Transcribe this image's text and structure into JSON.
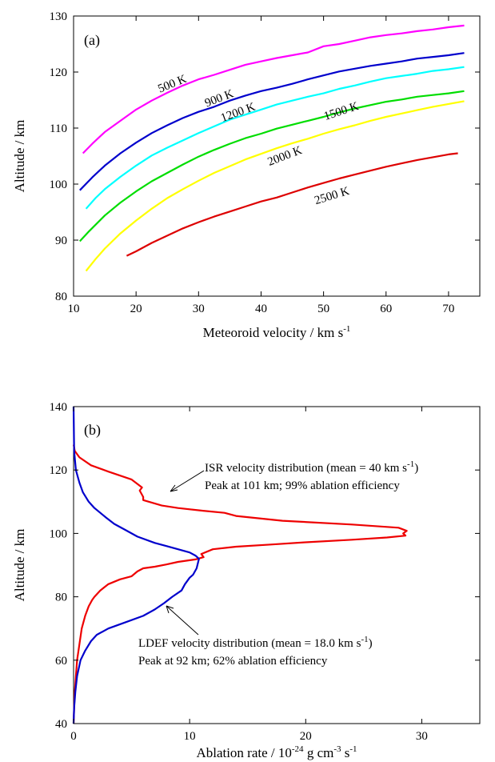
{
  "chart_data": [
    {
      "type": "line",
      "panel_label": "(a)",
      "xlabel": {
        "main": "Meteoroid velocity / km s",
        "sup": "-1"
      },
      "ylabel": "Altitude / km",
      "xlim": [
        10,
        75
      ],
      "ylim": [
        80,
        130
      ],
      "x_ticks": [
        "10",
        "20",
        "30",
        "40",
        "50",
        "60",
        "70"
      ],
      "y_ticks": [
        "80",
        "90",
        "100",
        "110",
        "120",
        "130"
      ],
      "grid": false,
      "series": [
        {
          "name": "500 K",
          "color": "#ff00ff",
          "x": [
            11.5,
            13,
            15,
            17.5,
            20,
            22.5,
            25,
            27.5,
            30,
            32.5,
            35,
            37.5,
            40,
            42.5,
            45,
            47.5,
            50,
            52.5,
            55,
            57.5,
            60,
            62.5,
            65,
            67.5,
            70,
            72.5
          ],
          "y": [
            105.5,
            107.2,
            109.3,
            111.3,
            113.3,
            114.9,
            116.3,
            117.6,
            118.7,
            119.5,
            120.4,
            121.3,
            121.9,
            122.5,
            123.0,
            123.5,
            124.6,
            125.0,
            125.6,
            126.2,
            126.6,
            126.9,
            127.3,
            127.6,
            128.0,
            128.3
          ]
        },
        {
          "name": "900 K",
          "color": "#0000cc",
          "x": [
            11,
            13,
            15,
            17.5,
            20,
            22.5,
            25,
            27.5,
            30,
            32.5,
            35,
            37.5,
            40,
            42.5,
            45,
            47.5,
            50,
            52.5,
            55,
            57.5,
            60,
            62.5,
            65,
            67.5,
            70,
            72.5
          ],
          "y": [
            98.9,
            101.2,
            103.3,
            105.5,
            107.4,
            109.1,
            110.5,
            111.8,
            112.9,
            113.8,
            114.9,
            115.8,
            116.6,
            117.2,
            117.9,
            118.7,
            119.4,
            120.1,
            120.6,
            121.1,
            121.5,
            121.9,
            122.4,
            122.7,
            123.0,
            123.4
          ]
        },
        {
          "name": "1200 K",
          "color": "#00ffff",
          "x": [
            12,
            13.5,
            15,
            17.5,
            20,
            22.5,
            25,
            27.5,
            30,
            32.5,
            35,
            37.5,
            40,
            42.5,
            45,
            47.5,
            50,
            52.5,
            55,
            57.5,
            60,
            62.5,
            65,
            67.5,
            70,
            72.5
          ],
          "y": [
            95.6,
            97.5,
            99.1,
            101.3,
            103.3,
            105.1,
            106.5,
            107.8,
            109.1,
            110.3,
            111.5,
            112.4,
            113.3,
            114.2,
            114.9,
            115.6,
            116.2,
            117.0,
            117.6,
            118.3,
            118.9,
            119.3,
            119.7,
            120.2,
            120.5,
            120.9
          ]
        },
        {
          "name": "1500 K",
          "color": "#00dd00",
          "x": [
            11,
            12.5,
            15,
            17.5,
            20,
            22.5,
            25,
            27.5,
            30,
            32.5,
            35,
            37.5,
            40,
            42.5,
            45,
            47.5,
            50,
            52.5,
            55,
            57.5,
            60,
            62.5,
            65,
            67.5,
            70,
            72.5
          ],
          "y": [
            89.8,
            91.6,
            94.4,
            96.7,
            98.7,
            100.5,
            102.0,
            103.5,
            104.9,
            106.1,
            107.2,
            108.2,
            109.0,
            109.9,
            110.6,
            111.3,
            112.0,
            112.8,
            113.5,
            114.1,
            114.7,
            115.1,
            115.6,
            115.9,
            116.2,
            116.6
          ]
        },
        {
          "name": "2000 K",
          "color": "#ffff00",
          "x": [
            12,
            13.5,
            15,
            17.5,
            20,
            22.5,
            25,
            27.5,
            30,
            32.5,
            35,
            37.5,
            40,
            42.5,
            45,
            47.5,
            50,
            52.5,
            55,
            57.5,
            60,
            62.5,
            65,
            67.5,
            70,
            72.5
          ],
          "y": [
            84.5,
            86.6,
            88.5,
            91.2,
            93.5,
            95.6,
            97.5,
            99.1,
            100.6,
            102.0,
            103.2,
            104.4,
            105.4,
            106.4,
            107.3,
            108.1,
            109.0,
            109.8,
            110.5,
            111.3,
            112.0,
            112.6,
            113.2,
            113.8,
            114.3,
            114.8
          ]
        },
        {
          "name": "2500 K",
          "color": "#dd0000",
          "x": [
            18.5,
            20,
            22.5,
            25,
            27.5,
            30,
            32.5,
            35,
            37.5,
            40,
            42.5,
            45,
            47.5,
            50,
            52.5,
            55,
            57.5,
            60,
            62.5,
            65,
            67.5,
            70,
            71.5
          ],
          "y": [
            87.2,
            88.0,
            89.5,
            90.8,
            92.1,
            93.2,
            94.2,
            95.1,
            96.0,
            96.9,
            97.6,
            98.5,
            99.4,
            100.2,
            101.0,
            101.7,
            102.4,
            103.1,
            103.7,
            104.3,
            104.8,
            105.3,
            105.5
          ]
        }
      ],
      "curve_labels": [
        {
          "text": "500 K",
          "x": 26,
          "y": 117.3,
          "angle": -22
        },
        {
          "text": "900 K",
          "x": 33.5,
          "y": 114.7,
          "angle": -21
        },
        {
          "text": "1200 K",
          "x": 36.5,
          "y": 112.2,
          "angle": -20
        },
        {
          "text": "1500 K",
          "x": 53,
          "y": 112.4,
          "angle": -18
        },
        {
          "text": "2000 K",
          "x": 44,
          "y": 104.4,
          "angle": -21
        },
        {
          "text": "2500 K",
          "x": 51.5,
          "y": 97.3,
          "angle": -17
        }
      ]
    },
    {
      "type": "line",
      "panel_label": "(b)",
      "xlabel": {
        "main": "Ablation rate / 10",
        "sup1": "-24",
        "mid": " g cm",
        "sup2": "-3",
        "mid2": " s",
        "sup3": "-1"
      },
      "ylabel": "Altitude / km",
      "xlim": [
        0,
        35
      ],
      "ylim": [
        40,
        140
      ],
      "x_ticks": [
        "0",
        "10",
        "20",
        "30"
      ],
      "y_ticks": [
        "40",
        "60",
        "80",
        "100",
        "120",
        "140"
      ],
      "grid": false,
      "series": [
        {
          "name": "ISR velocity distribution",
          "color": "#ee0000",
          "x": [
            0,
            0.05,
            0.1,
            0.2,
            0.3,
            0.5,
            0.7,
            1.0,
            1.3,
            1.6,
            1.8,
            2.3,
            3.0,
            4.0,
            5.0,
            5.5,
            6.0,
            7.0,
            8.0,
            9.0,
            10.5,
            11.2,
            11.0,
            12.0,
            14.0,
            17.0,
            20.0,
            24.0,
            27.0,
            28.6,
            28.4,
            28.7,
            28.0,
            24.0,
            18.0,
            14.0,
            13.0,
            11.0,
            9.0,
            7.6,
            6.0,
            6.0,
            5.7,
            5.9,
            5.0,
            3.0,
            1.5,
            0.5,
            0.1,
            0.01
          ],
          "y": [
            40,
            45,
            50,
            55,
            60,
            65,
            70,
            74,
            77,
            79,
            80,
            82,
            84,
            85.5,
            86.5,
            88.0,
            89.0,
            89.5,
            90.2,
            91.0,
            91.8,
            92.5,
            93.5,
            95.0,
            95.8,
            96.5,
            97.2,
            98.0,
            98.7,
            99.3,
            100.0,
            100.8,
            101.8,
            102.8,
            104.0,
            105.5,
            106.5,
            107.2,
            108.0,
            108.8,
            110.5,
            111.5,
            113.5,
            114.5,
            117.0,
            119.5,
            121.5,
            124.0,
            126.0,
            128.0
          ]
        },
        {
          "name": "LDEF velocity distribution",
          "color": "#0000cc",
          "x": [
            0,
            0.05,
            0.15,
            0.3,
            0.6,
            1.0,
            1.5,
            2.0,
            3.0,
            4.5,
            6.0,
            7.0,
            7.8,
            8.5,
            9.3,
            9.6,
            9.8,
            10.0,
            10.3,
            10.6,
            10.8,
            10.5,
            10.0,
            9.0,
            8.0,
            7.0,
            5.5,
            4.5,
            3.5,
            2.8,
            2.3,
            1.8,
            1.3,
            0.8,
            0.5,
            0.2,
            0.05,
            0
          ],
          "y": [
            40,
            45,
            50,
            55,
            60,
            63,
            66,
            68,
            70,
            72,
            74,
            76,
            78,
            80,
            82,
            84,
            85,
            86,
            87,
            89,
            92,
            93.0,
            94.0,
            95.0,
            96.0,
            97.0,
            99.0,
            101.0,
            103.0,
            105.0,
            106.5,
            108.0,
            110.0,
            113.0,
            116.0,
            120.0,
            126.0,
            140.0
          ]
        }
      ],
      "annotations": {
        "isr_line1": {
          "main": "ISR velocity distribution (mean = 40 km s",
          "sup": "-1",
          "end": ")"
        },
        "isr_line2": "Peak at 101 km;  99% ablation efficiency",
        "ldef_line1": {
          "main": "LDEF velocity distribution (mean = 18.0 km s",
          "sup": "-1",
          "end": ")"
        },
        "ldef_line2": "Peak at 92 km;  62% ablation efficiency"
      }
    }
  ]
}
